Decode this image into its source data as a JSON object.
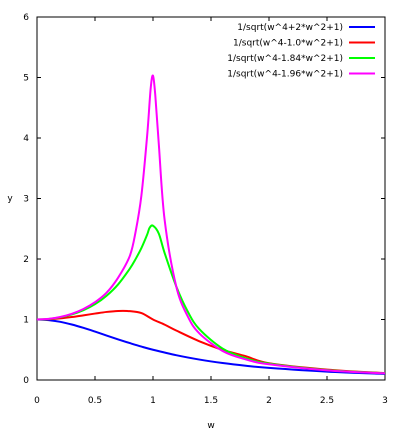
{
  "chart_data": {
    "type": "line",
    "xlabel": "w",
    "ylabel": "y",
    "xlim": [
      0,
      3
    ],
    "ylim": [
      0,
      6
    ],
    "xticks": [
      "0",
      "0.5",
      "1",
      "1.5",
      "2",
      "2.5",
      "3"
    ],
    "yticks": [
      "0",
      "1",
      "2",
      "3",
      "4",
      "5",
      "6"
    ],
    "grid": false,
    "legend_position": "top-right",
    "series": [
      {
        "name": "1/sqrt(w^4+2*w^2+1)",
        "color": "#0000ff",
        "x": [
          0,
          0.1,
          0.2,
          0.3,
          0.4,
          0.5,
          0.6,
          0.7,
          0.8,
          0.9,
          1.0,
          1.2,
          1.4,
          1.6,
          1.8,
          2.0,
          2.5,
          3.0
        ],
        "y": [
          1.0,
          0.99,
          0.962,
          0.917,
          0.862,
          0.8,
          0.735,
          0.671,
          0.61,
          0.552,
          0.5,
          0.41,
          0.338,
          0.281,
          0.236,
          0.2,
          0.138,
          0.1
        ]
      },
      {
        "name": "1/sqrt(w^4-1.0*w^2+1)",
        "color": "#ff0000",
        "x": [
          0,
          0.1,
          0.2,
          0.3,
          0.4,
          0.5,
          0.6,
          0.7,
          0.8,
          0.9,
          1.0,
          1.1,
          1.2,
          1.4,
          1.6,
          1.8,
          2.0,
          2.5,
          3.0
        ],
        "y": [
          1.0,
          1.005,
          1.019,
          1.041,
          1.069,
          1.098,
          1.125,
          1.141,
          1.138,
          1.106,
          1.0,
          0.915,
          0.818,
          0.64,
          0.498,
          0.393,
          0.277,
          0.172,
          0.115
        ]
      },
      {
        "name": "1/sqrt(w^4-1.84*w^2+1)",
        "color": "#00ff00",
        "x": [
          0,
          0.1,
          0.2,
          0.3,
          0.4,
          0.5,
          0.6,
          0.7,
          0.8,
          0.85,
          0.9,
          0.95,
          0.97,
          1.0,
          1.05,
          1.1,
          1.2,
          1.3,
          1.4,
          1.6,
          1.8,
          2.0,
          2.5,
          3.0
        ],
        "y": [
          1.0,
          1.009,
          1.036,
          1.083,
          1.153,
          1.253,
          1.393,
          1.582,
          1.84,
          1.999,
          2.181,
          2.405,
          2.514,
          2.55,
          2.42,
          2.1,
          1.55,
          1.13,
          0.84,
          0.52,
          0.36,
          0.27,
          0.163,
          0.111
        ]
      },
      {
        "name": "1/sqrt(w^4-1.96*w^2+1)",
        "color": "#ff00ff",
        "x": [
          0,
          0.1,
          0.2,
          0.3,
          0.4,
          0.5,
          0.6,
          0.7,
          0.8,
          0.85,
          0.9,
          0.95,
          0.98,
          1.0,
          1.02,
          1.05,
          1.1,
          1.2,
          1.3,
          1.4,
          1.6,
          1.8,
          2.0,
          2.5,
          3.0
        ],
        "y": [
          1.0,
          1.01,
          1.041,
          1.094,
          1.174,
          1.286,
          1.443,
          1.693,
          2.05,
          2.45,
          3.05,
          4.05,
          4.82,
          5.03,
          4.7,
          3.9,
          2.65,
          1.55,
          1.05,
          0.77,
          0.48,
          0.34,
          0.26,
          0.16,
          0.11
        ]
      }
    ]
  }
}
